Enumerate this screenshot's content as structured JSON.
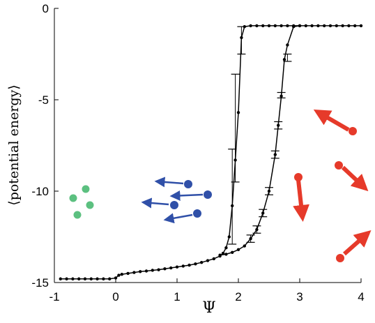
{
  "chart_data": {
    "type": "line",
    "xlabel": "Ψ",
    "ylabel": "⟨potential energy⟩",
    "xlim": [
      -1,
      4
    ],
    "ylim": [
      -15,
      0
    ],
    "x_ticks": [
      "-1",
      "0",
      "1",
      "2",
      "3",
      "4"
    ],
    "y_ticks": [
      "0",
      "-5",
      "-10",
      "-15"
    ],
    "grid": false,
    "legend": "none",
    "series": [
      {
        "color": "#000000",
        "x": [
          -0.9,
          -0.8,
          -0.7,
          -0.6,
          -0.5,
          -0.4,
          -0.3,
          -0.2,
          -0.1,
          0.0,
          0.05,
          0.1,
          0.2,
          0.3,
          0.4,
          0.5,
          0.6,
          0.7,
          0.8,
          0.9,
          1.0,
          1.1,
          1.2,
          1.3,
          1.4,
          1.5,
          1.6,
          1.7,
          1.75,
          1.8,
          1.85,
          1.9,
          1.95,
          2.0,
          2.05,
          2.1,
          2.2,
          2.3,
          2.4,
          2.5,
          2.6,
          2.7,
          2.8,
          2.9,
          3.0,
          3.1,
          3.2,
          3.3,
          3.4,
          3.5,
          3.6,
          3.7,
          3.8,
          3.9,
          4.0
        ],
        "y": [
          -14.8,
          -14.8,
          -14.8,
          -14.8,
          -14.8,
          -14.8,
          -14.8,
          -14.8,
          -14.8,
          -14.75,
          -14.6,
          -14.55,
          -14.5,
          -14.45,
          -14.4,
          -14.37,
          -14.33,
          -14.3,
          -14.25,
          -14.2,
          -14.15,
          -14.1,
          -14.05,
          -13.98,
          -13.9,
          -13.8,
          -13.7,
          -13.55,
          -13.4,
          -13.1,
          -12.5,
          -10.8,
          -8.3,
          -5.7,
          -1.6,
          -1.0,
          -0.95,
          -0.95,
          -0.95,
          -0.95,
          -0.95,
          -0.95,
          -0.95,
          -0.95,
          -0.95,
          -0.95,
          -0.95,
          -0.95,
          -0.95,
          -0.95,
          -0.95,
          -0.95,
          -0.95,
          -0.95,
          -0.95
        ],
        "error_bars": [
          {
            "x": 1.9,
            "low": -12.9,
            "high": -7.7
          },
          {
            "x": 1.95,
            "low": -9.5,
            "high": -3.6
          },
          {
            "x": 2.05,
            "low": -2.5,
            "high": -1.0
          }
        ]
      },
      {
        "color": "#000000",
        "x": [
          1.7,
          1.8,
          1.9,
          2.0,
          2.1,
          2.2,
          2.3,
          2.4,
          2.5,
          2.6,
          2.65,
          2.7,
          2.75,
          2.8,
          2.9,
          3.0
        ],
        "y": [
          -13.5,
          -13.45,
          -13.35,
          -13.2,
          -13.0,
          -12.6,
          -12.1,
          -11.2,
          -10.0,
          -8.0,
          -6.4,
          -4.8,
          -2.8,
          -2.0,
          -1.0,
          -0.95
        ],
        "error_bars": [
          {
            "x": 2.8,
            "low": -2.9,
            "high": -2.5
          },
          {
            "x": 2.7,
            "low": -4.9,
            "high": -4.6
          },
          {
            "x": 2.65,
            "low": -6.6,
            "high": -6.2
          },
          {
            "x": 2.6,
            "low": -8.2,
            "high": -7.8
          },
          {
            "x": 2.5,
            "low": -10.2,
            "high": -9.8
          },
          {
            "x": 2.4,
            "low": -11.4,
            "high": -11.0
          },
          {
            "x": 2.3,
            "low": -12.3,
            "high": -11.9
          },
          {
            "x": 2.2,
            "low": -12.8,
            "high": -12.4
          }
        ]
      }
    ]
  },
  "colors": {
    "green_particles": "#5cc080",
    "blue_particles": "#3050a8",
    "red_particles": "#e63a2a"
  }
}
